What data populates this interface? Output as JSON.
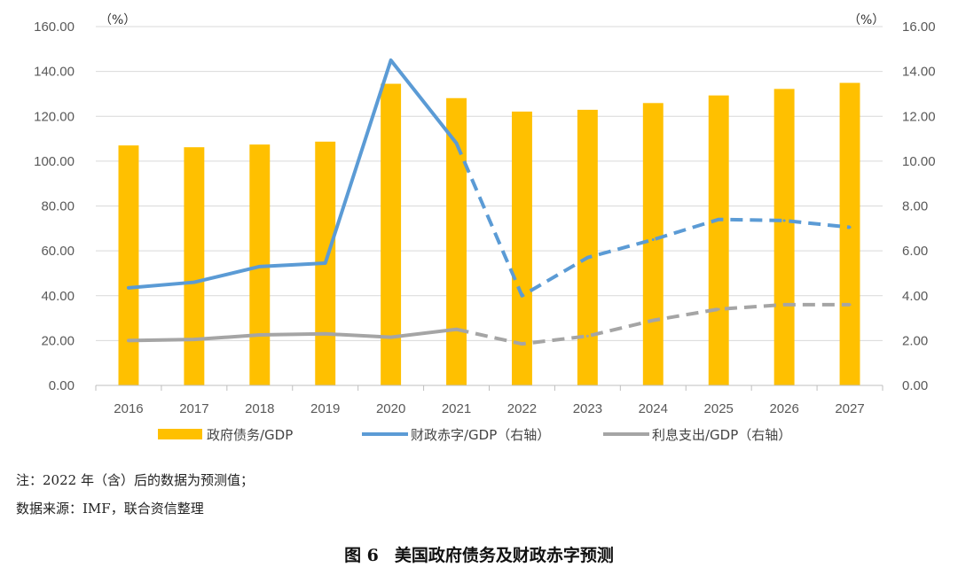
{
  "chart_data": {
    "type": "bar+line",
    "categories": [
      "2016",
      "2017",
      "2018",
      "2019",
      "2020",
      "2021",
      "2022",
      "2023",
      "2024",
      "2025",
      "2026",
      "2027"
    ],
    "left_axis": {
      "unit": "（%）",
      "ylim": [
        0,
        160
      ],
      "ticks": [
        "0.00",
        "20.00",
        "40.00",
        "60.00",
        "80.00",
        "100.00",
        "120.00",
        "140.00",
        "160.00"
      ]
    },
    "right_axis": {
      "unit": "（%）",
      "ylim": [
        0,
        16
      ],
      "ticks": [
        "0.00",
        "2.00",
        "4.00",
        "6.00",
        "8.00",
        "10.00",
        "12.00",
        "14.00",
        "16.00"
      ]
    },
    "forecast_start": "2022",
    "series": [
      {
        "name": "政府债务/GDP",
        "type": "bar",
        "axis": "left",
        "color": "#FFC000",
        "values": [
          107,
          106.2,
          107.4,
          108.7,
          134.5,
          128.1,
          122.1,
          122.9,
          125.9,
          129.3,
          132.2,
          134.9
        ]
      },
      {
        "name": "财政赤字/GDP（右轴）",
        "type": "line",
        "axis": "right",
        "color": "#5B9BD5",
        "values": [
          4.35,
          4.6,
          5.3,
          5.45,
          14.5,
          10.8,
          4.0,
          5.7,
          6.5,
          7.4,
          7.35,
          7.05
        ]
      },
      {
        "name": "利息支出/GDP（右轴）",
        "type": "line",
        "axis": "right",
        "color": "#A5A5A5",
        "values": [
          2.0,
          2.05,
          2.25,
          2.3,
          2.15,
          2.5,
          1.85,
          2.2,
          2.9,
          3.4,
          3.6,
          3.6
        ]
      }
    ]
  },
  "notes": {
    "note1": "注：2022 年（含）后的数据为预测值；",
    "note2": "数据来源：IMF，联合资信整理"
  },
  "caption": {
    "number": "图 6",
    "title": "美国政府债务及财政赤字预测"
  }
}
